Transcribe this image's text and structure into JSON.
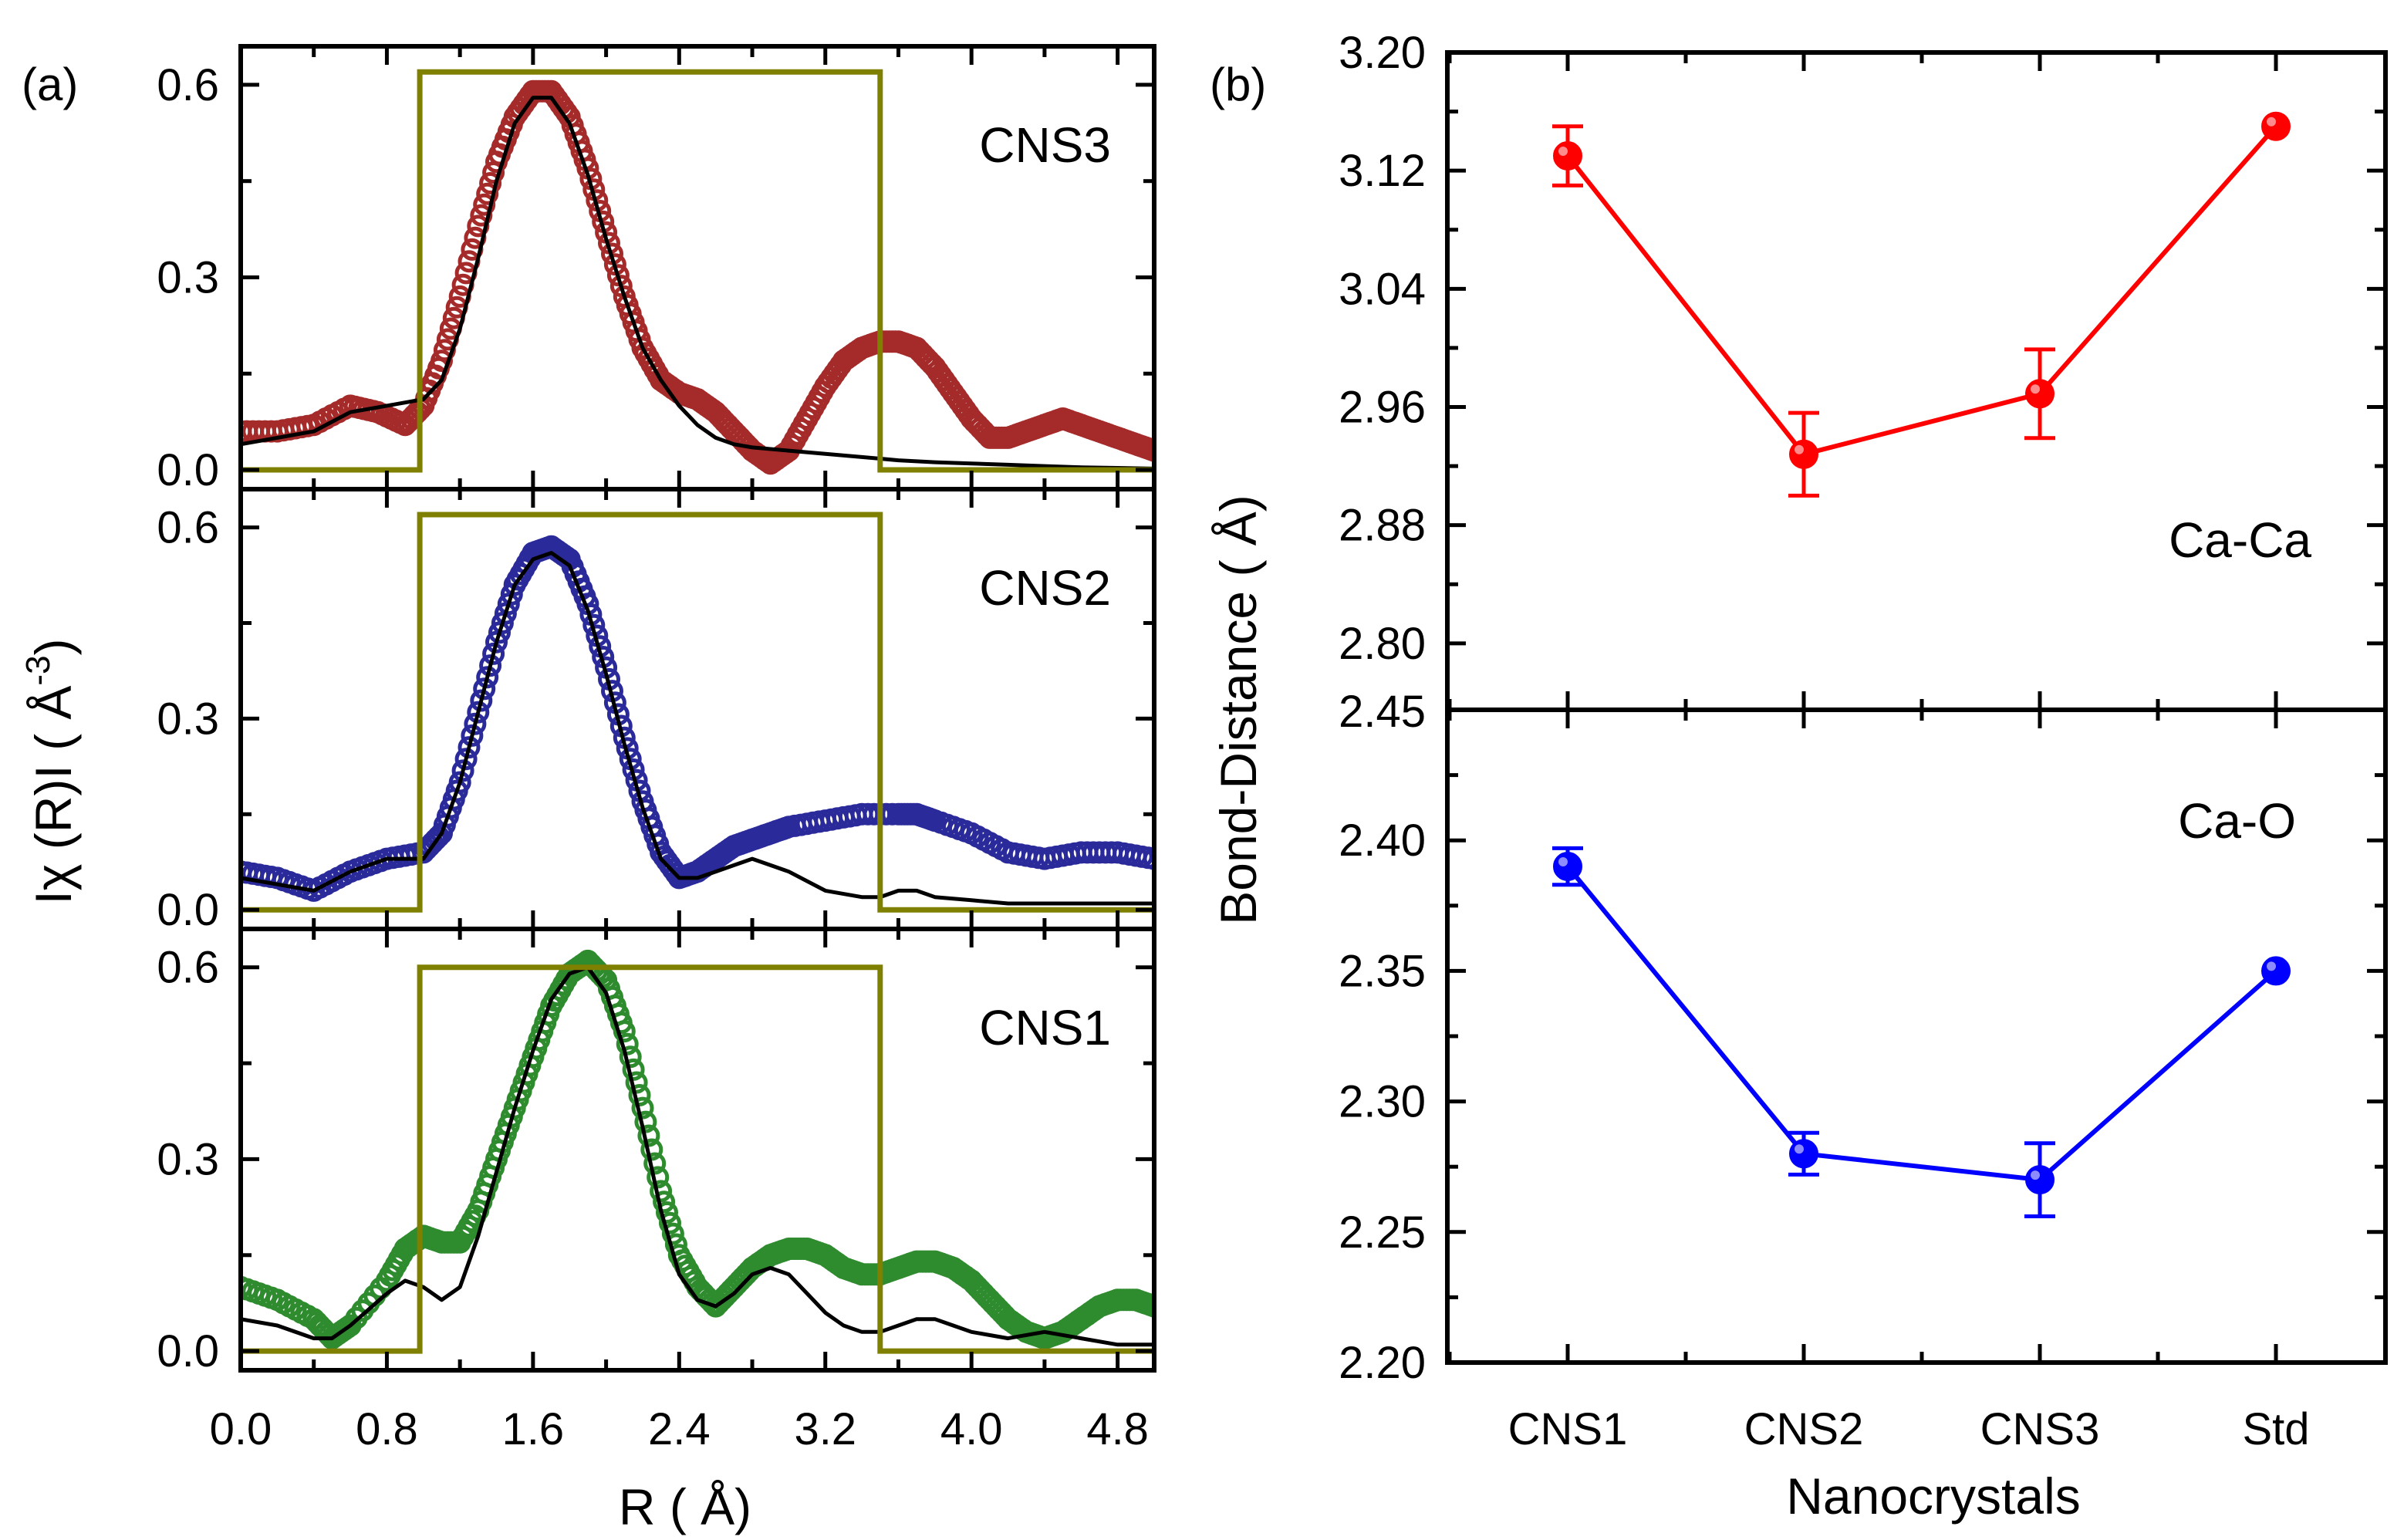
{
  "chart_data": [
    {
      "id": "a",
      "panel_label": "(a)",
      "type": "line",
      "xlabel": "R ( Å)",
      "ylabel_prefix": "Iχ (R)I ( Å",
      "ylabel_exp": "-3",
      "ylabel_suffix": ")",
      "xlim": [
        0.0,
        5.0
      ],
      "x_ticks": [
        "0.0",
        "0.8",
        "1.6",
        "2.4",
        "3.2",
        "4.0",
        "4.8"
      ],
      "window_color": "#808000",
      "fit_color": "#000000",
      "subplots": [
        {
          "name": "CNS3",
          "label": "CNS3",
          "ylim": [
            -0.03,
            0.66
          ],
          "y_ticks": [
            "0.0",
            "0.3",
            "0.6"
          ],
          "data_color": "#a52a2a",
          "window": {
            "r_start": 0.98,
            "r_end": 3.5,
            "height": 0.62
          },
          "data_x": [
            0.0,
            0.2,
            0.4,
            0.6,
            0.75,
            0.9,
            1.0,
            1.1,
            1.2,
            1.3,
            1.4,
            1.5,
            1.6,
            1.7,
            1.8,
            1.9,
            2.0,
            2.1,
            2.2,
            2.3,
            2.4,
            2.5,
            2.6,
            2.7,
            2.8,
            2.9,
            3.0,
            3.1,
            3.2,
            3.3,
            3.4,
            3.5,
            3.6,
            3.7,
            3.8,
            3.9,
            4.0,
            4.1,
            4.2,
            4.3,
            4.4,
            4.5,
            4.6,
            4.7,
            4.8,
            4.9,
            5.0
          ],
          "data_y": [
            0.06,
            0.06,
            0.07,
            0.1,
            0.09,
            0.07,
            0.1,
            0.17,
            0.27,
            0.38,
            0.48,
            0.55,
            0.59,
            0.59,
            0.55,
            0.47,
            0.37,
            0.27,
            0.19,
            0.14,
            0.12,
            0.11,
            0.09,
            0.06,
            0.03,
            0.01,
            0.03,
            0.08,
            0.13,
            0.17,
            0.19,
            0.2,
            0.2,
            0.19,
            0.16,
            0.12,
            0.08,
            0.05,
            0.05,
            0.06,
            0.07,
            0.08,
            0.07,
            0.06,
            0.05,
            0.04,
            0.03
          ],
          "fit_x": [
            0.0,
            0.2,
            0.4,
            0.6,
            0.8,
            1.0,
            1.1,
            1.2,
            1.3,
            1.4,
            1.5,
            1.6,
            1.7,
            1.8,
            1.9,
            2.0,
            2.1,
            2.2,
            2.3,
            2.4,
            2.5,
            2.6,
            2.7,
            2.8,
            3.0,
            3.2,
            3.4,
            3.6,
            3.8,
            4.0,
            4.2,
            4.4,
            4.6,
            4.8,
            5.0
          ],
          "fit_y": [
            0.04,
            0.05,
            0.06,
            0.09,
            0.1,
            0.11,
            0.14,
            0.22,
            0.33,
            0.45,
            0.54,
            0.58,
            0.58,
            0.54,
            0.46,
            0.36,
            0.27,
            0.19,
            0.14,
            0.1,
            0.07,
            0.05,
            0.04,
            0.035,
            0.03,
            0.025,
            0.02,
            0.015,
            0.012,
            0.01,
            0.008,
            0.006,
            0.004,
            0.003,
            0.002
          ]
        },
        {
          "name": "CNS2",
          "label": "CNS2",
          "ylim": [
            -0.03,
            0.66
          ],
          "y_ticks": [
            "0.0",
            "0.3",
            "0.6"
          ],
          "data_color": "#2a2a9a",
          "window": {
            "r_start": 0.98,
            "r_end": 3.5,
            "height": 0.62
          },
          "data_x": [
            0.0,
            0.2,
            0.4,
            0.6,
            0.8,
            1.0,
            1.1,
            1.2,
            1.3,
            1.4,
            1.5,
            1.6,
            1.7,
            1.8,
            1.9,
            2.0,
            2.1,
            2.2,
            2.3,
            2.4,
            2.5,
            2.6,
            2.7,
            2.8,
            2.9,
            3.0,
            3.2,
            3.4,
            3.6,
            3.7,
            3.8,
            4.0,
            4.2,
            4.4,
            4.6,
            4.8,
            5.0
          ],
          "data_y": [
            0.06,
            0.05,
            0.03,
            0.06,
            0.08,
            0.09,
            0.12,
            0.2,
            0.31,
            0.42,
            0.51,
            0.56,
            0.57,
            0.55,
            0.48,
            0.38,
            0.27,
            0.17,
            0.09,
            0.05,
            0.06,
            0.08,
            0.1,
            0.11,
            0.12,
            0.13,
            0.14,
            0.15,
            0.15,
            0.15,
            0.14,
            0.12,
            0.09,
            0.08,
            0.09,
            0.09,
            0.08
          ],
          "fit_x": [
            0.0,
            0.2,
            0.4,
            0.6,
            0.8,
            1.0,
            1.1,
            1.2,
            1.3,
            1.4,
            1.5,
            1.6,
            1.7,
            1.8,
            1.9,
            2.0,
            2.1,
            2.2,
            2.3,
            2.4,
            2.5,
            2.6,
            2.7,
            2.8,
            2.9,
            3.0,
            3.2,
            3.4,
            3.5,
            3.6,
            3.7,
            3.8,
            4.0,
            4.2,
            4.4,
            4.6,
            4.8,
            5.0
          ],
          "fit_y": [
            0.05,
            0.04,
            0.03,
            0.06,
            0.08,
            0.08,
            0.12,
            0.2,
            0.31,
            0.42,
            0.51,
            0.55,
            0.56,
            0.54,
            0.47,
            0.37,
            0.26,
            0.16,
            0.08,
            0.05,
            0.05,
            0.06,
            0.07,
            0.08,
            0.07,
            0.06,
            0.03,
            0.02,
            0.02,
            0.03,
            0.03,
            0.02,
            0.015,
            0.01,
            0.01,
            0.01,
            0.01,
            0.01
          ]
        },
        {
          "name": "CNS1",
          "label": "CNS1",
          "ylim": [
            -0.03,
            0.66
          ],
          "y_ticks": [
            "0.0",
            "0.3",
            "0.6"
          ],
          "data_color": "#2e8b2e",
          "window": {
            "r_start": 0.98,
            "r_end": 3.5,
            "height": 0.6
          },
          "data_x": [
            0.0,
            0.2,
            0.4,
            0.5,
            0.6,
            0.8,
            0.9,
            1.0,
            1.1,
            1.2,
            1.3,
            1.4,
            1.5,
            1.6,
            1.7,
            1.8,
            1.9,
            2.0,
            2.1,
            2.2,
            2.3,
            2.4,
            2.5,
            2.6,
            2.7,
            2.8,
            2.9,
            3.0,
            3.1,
            3.2,
            3.3,
            3.4,
            3.5,
            3.6,
            3.7,
            3.8,
            3.9,
            4.0,
            4.1,
            4.2,
            4.3,
            4.4,
            4.5,
            4.6,
            4.7,
            4.8,
            4.9,
            5.0
          ],
          "data_y": [
            0.1,
            0.08,
            0.05,
            0.02,
            0.04,
            0.11,
            0.16,
            0.18,
            0.17,
            0.17,
            0.22,
            0.3,
            0.38,
            0.46,
            0.54,
            0.59,
            0.61,
            0.58,
            0.5,
            0.38,
            0.25,
            0.15,
            0.1,
            0.07,
            0.1,
            0.13,
            0.15,
            0.16,
            0.16,
            0.15,
            0.13,
            0.12,
            0.12,
            0.13,
            0.14,
            0.14,
            0.13,
            0.11,
            0.08,
            0.05,
            0.03,
            0.02,
            0.03,
            0.05,
            0.07,
            0.08,
            0.08,
            0.07
          ],
          "fit_x": [
            0.0,
            0.2,
            0.4,
            0.5,
            0.6,
            0.8,
            0.9,
            1.0,
            1.1,
            1.2,
            1.3,
            1.4,
            1.5,
            1.6,
            1.7,
            1.8,
            1.9,
            2.0,
            2.1,
            2.2,
            2.3,
            2.4,
            2.5,
            2.6,
            2.7,
            2.8,
            2.9,
            3.0,
            3.1,
            3.2,
            3.3,
            3.4,
            3.5,
            3.6,
            3.7,
            3.8,
            3.9,
            4.0,
            4.2,
            4.4,
            4.6,
            4.8,
            5.0
          ],
          "fit_y": [
            0.05,
            0.04,
            0.02,
            0.02,
            0.04,
            0.09,
            0.11,
            0.1,
            0.08,
            0.1,
            0.18,
            0.28,
            0.38,
            0.47,
            0.55,
            0.59,
            0.6,
            0.56,
            0.47,
            0.35,
            0.22,
            0.12,
            0.08,
            0.07,
            0.09,
            0.12,
            0.13,
            0.12,
            0.09,
            0.06,
            0.04,
            0.03,
            0.03,
            0.04,
            0.05,
            0.05,
            0.04,
            0.03,
            0.02,
            0.03,
            0.02,
            0.01,
            0.01
          ]
        }
      ]
    },
    {
      "id": "b",
      "panel_label": "(b)",
      "type": "scatter",
      "xlabel": "Nanocrystals",
      "ylabel": "Bond-Distance ( Å)",
      "categories": [
        "CNS1",
        "CNS2",
        "CNS3",
        "Std"
      ],
      "subplots": [
        {
          "name": "Ca-Ca",
          "label": "Ca-Ca",
          "color": "#ff0000",
          "ylim": [
            2.755,
            3.2
          ],
          "y_ticks": [
            "2.80",
            "2.88",
            "2.96",
            "3.04",
            "3.12",
            "3.20"
          ],
          "values": [
            3.13,
            2.928,
            2.969,
            3.15
          ],
          "errors": [
            0.02,
            0.028,
            0.03,
            null
          ]
        },
        {
          "name": "Ca-O",
          "label": "Ca-O",
          "color": "#0000ff",
          "ylim": [
            2.2,
            2.45
          ],
          "y_ticks": [
            "2.20",
            "2.25",
            "2.30",
            "2.35",
            "2.40",
            "2.45"
          ],
          "values": [
            2.39,
            2.28,
            2.27,
            2.35
          ],
          "errors": [
            0.007,
            0.008,
            0.014,
            null
          ]
        }
      ]
    }
  ]
}
